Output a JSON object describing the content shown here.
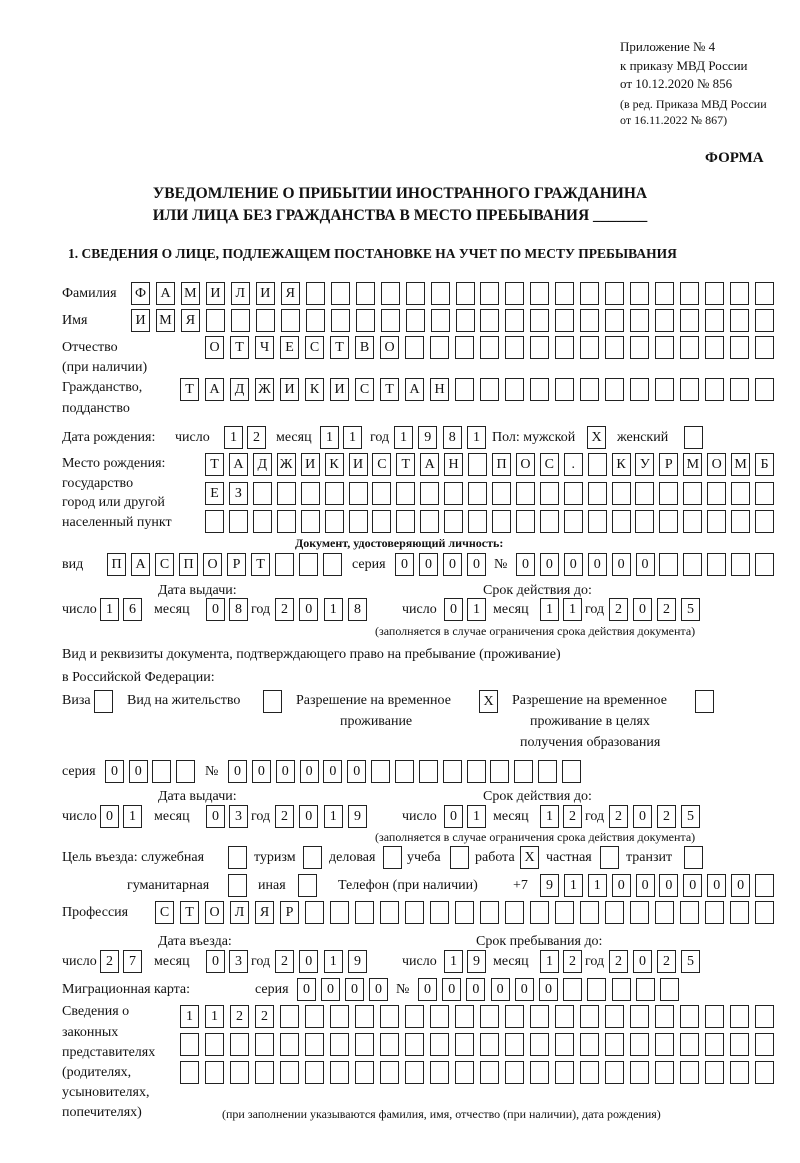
{
  "header": {
    "appendix": "Приложение № 4",
    "order": "к приказу МВД России",
    "order_date": "от 10.12.2020 № 856",
    "edition_1": "(в ред. Приказа МВД России",
    "edition_2": "от 16.11.2022 № 867)"
  },
  "form_label": "ФОРМА",
  "title_line1": "УВЕДОМЛЕНИЕ О ПРИБЫТИИ ИНОСТРАННОГО ГРАЖДАНИНА",
  "title_line2": "ИЛИ ЛИЦА БЕЗ ГРАЖДАНСТВА В МЕСТО ПРЕБЫВАНИЯ _______",
  "section1_heading": "1. СВЕДЕНИЯ О ЛИЦЕ, ПОДЛЕЖАЩЕМ ПОСТАНОВКЕ НА УЧЕТ ПО МЕСТУ ПРЕБЫВАНИЯ",
  "labels": {
    "surname": "Фамилия",
    "name": "Имя",
    "patronymic": "Отчество",
    "patronymic_note": "(при наличии)",
    "citizenship_1": "Гражданство,",
    "citizenship_2": "подданство",
    "birth_date": "Дата рождения:",
    "day": "число",
    "month": "месяц",
    "year": "год",
    "sex_male": "Пол: мужской",
    "sex_female": "женский",
    "birth_place_1": "Место рождения:",
    "birth_place_2": "государство",
    "birth_place_3": "город или другой",
    "birth_place_4": "населенный пункт",
    "id_doc": "Документ, удостоверяющий личность:",
    "kind": "вид",
    "series": "серия",
    "number": "№",
    "issue_date": "Дата выдачи:",
    "valid_until": "Срок действия до:",
    "validity_note": "(заполняется в случае ограничения срока действия документа)",
    "stay_doc_1": "Вид и реквизиты документа, подтверждающего право на пребывание (проживание)",
    "stay_doc_2": "в Российской Федерации:",
    "visa": "Виза",
    "residence_permit": "Вид на жительство",
    "temp_residence_1": "Разрешение на временное",
    "temp_residence_2": "проживание",
    "temp_edu_1": "Разрешение на временное",
    "temp_edu_2": "проживание в целях",
    "temp_edu_3": "получения образования",
    "purpose": "Цель въезда: служебная",
    "tourism": "туризм",
    "business": "деловая",
    "study": "учеба",
    "work": "работа",
    "private": "частная",
    "transit": "транзит",
    "humanitarian": "гуманитарная",
    "other": "иная",
    "phone": "Телефон (при наличии)",
    "phone_prefix": "+7",
    "profession": "Профессия",
    "entry_date": "Дата въезда:",
    "stay_until": "Срок пребывания до:",
    "migration_card": "Миграционная карта:",
    "reps_1": "Сведения о",
    "reps_2": "законных",
    "reps_3": "представителях",
    "reps_4": "(родителях,",
    "reps_5": "усыновителях,",
    "reps_6": "попечителях)",
    "reps_note": "(при заполнении указываются фамилия, имя, отчество (при наличии), дата рождения)"
  },
  "person": {
    "surname": [
      "Ф",
      "А",
      "М",
      "И",
      "Л",
      "И",
      "Я"
    ],
    "name": [
      "И",
      "М",
      "Я"
    ],
    "patronymic": [
      "О",
      "Т",
      "Ч",
      "Е",
      "С",
      "Т",
      "В",
      "О"
    ],
    "citizenship": [
      "Т",
      "А",
      "Д",
      "Ж",
      "И",
      "К",
      "И",
      "С",
      "Т",
      "А",
      "Н"
    ],
    "birth_day": [
      "1",
      "2"
    ],
    "birth_month": [
      "1",
      "1"
    ],
    "birth_year": [
      "1",
      "9",
      "8",
      "1"
    ],
    "sex_male": [
      "X"
    ],
    "sex_female": [
      ""
    ],
    "birth_place_1": [
      "Т",
      "А",
      "Д",
      "Ж",
      "И",
      "К",
      "И",
      "С",
      "Т",
      "А",
      "Н",
      "",
      "П",
      "О",
      "С",
      ".",
      "",
      "К",
      "У",
      "Р",
      "М",
      "О",
      "М",
      "Б"
    ],
    "birth_place_2": [
      "Е",
      "З"
    ],
    "birth_place_3": []
  },
  "id_document": {
    "kind": [
      "П",
      "А",
      "С",
      "П",
      "О",
      "Р",
      "Т"
    ],
    "series": [
      "0",
      "0",
      "0",
      "0"
    ],
    "number": [
      "0",
      "0",
      "0",
      "0",
      "0",
      "0"
    ],
    "issue_day": [
      "1",
      "6"
    ],
    "issue_month": [
      "0",
      "8"
    ],
    "issue_year": [
      "2",
      "0",
      "1",
      "8"
    ],
    "valid_day": [
      "0",
      "1"
    ],
    "valid_month": [
      "1",
      "1"
    ],
    "valid_year": [
      "2",
      "0",
      "2",
      "5"
    ]
  },
  "stay_document": {
    "visa": [
      ""
    ],
    "residence_permit": [
      ""
    ],
    "temp_residence": [
      "X"
    ],
    "temp_edu": [
      ""
    ],
    "series": [
      "0",
      "0"
    ],
    "number": [
      "0",
      "0",
      "0",
      "0",
      "0",
      "0"
    ],
    "issue_day": [
      "0",
      "1"
    ],
    "issue_month": [
      "0",
      "3"
    ],
    "issue_year": [
      "2",
      "0",
      "1",
      "9"
    ],
    "valid_day": [
      "0",
      "1"
    ],
    "valid_month": [
      "1",
      "2"
    ],
    "valid_year": [
      "2",
      "0",
      "2",
      "5"
    ]
  },
  "purpose": {
    "official": [
      ""
    ],
    "tourism": [
      ""
    ],
    "business": [
      ""
    ],
    "study": [
      ""
    ],
    "work": [
      "X"
    ],
    "private": [
      ""
    ],
    "transit": [
      ""
    ],
    "humanitarian": [
      ""
    ],
    "other": [
      ""
    ]
  },
  "phone": [
    "9",
    "1",
    "1",
    "0",
    "0",
    "0",
    "0",
    "0",
    "0"
  ],
  "profession": [
    "С",
    "Т",
    "О",
    "Л",
    "Я",
    "Р"
  ],
  "entry": {
    "day": [
      "2",
      "7"
    ],
    "month": [
      "0",
      "3"
    ],
    "year": [
      "2",
      "0",
      "1",
      "9"
    ],
    "until_day": [
      "1",
      "9"
    ],
    "until_month": [
      "1",
      "2"
    ],
    "until_year": [
      "2",
      "0",
      "2",
      "5"
    ]
  },
  "migration_card": {
    "series": [
      "0",
      "0",
      "0",
      "0"
    ],
    "number": [
      "0",
      "0",
      "0",
      "0",
      "0",
      "0"
    ]
  },
  "representatives": {
    "row1": [
      "1",
      "1",
      "2",
      "2"
    ],
    "row2": [],
    "row3": []
  }
}
